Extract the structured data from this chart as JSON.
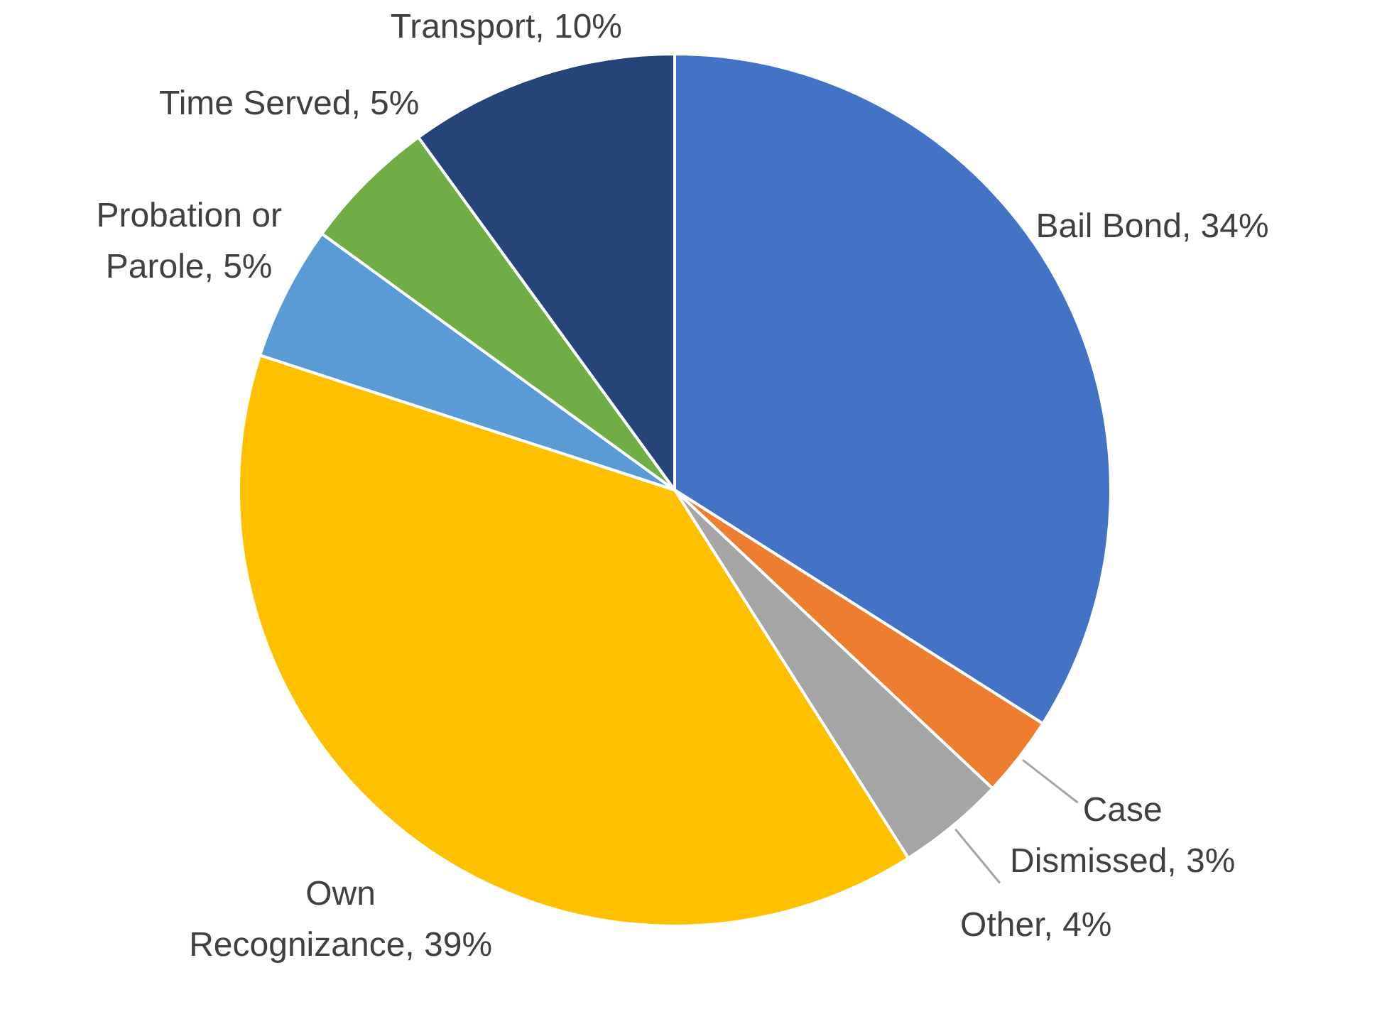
{
  "chart_data": {
    "type": "pie",
    "categories": [
      "Bail Bond",
      "Case Dismissed",
      "Other",
      "Own Recognizance",
      "Probation or Parole",
      "Time Served",
      "Transport"
    ],
    "values": [
      34,
      3,
      4,
      39,
      5,
      5,
      10
    ],
    "colors": [
      "#4472c4",
      "#ed7d31",
      "#a5a5a5",
      "#ffc000",
      "#5b9bd5",
      "#70ad47",
      "#264478"
    ],
    "value_labels": [
      "34%",
      "3%",
      "4%",
      "39%",
      "5%",
      "5%",
      "10%"
    ],
    "legend": false
  }
}
